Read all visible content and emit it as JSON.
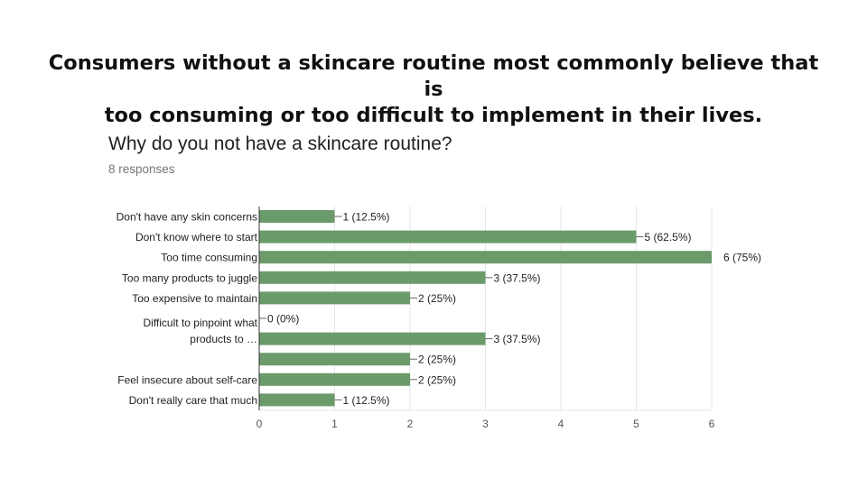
{
  "slide": {
    "title_lines": [
      "Consumers without a skincare routine most commonly believe that is",
      "too consuming or too difficult to implement in their lives."
    ]
  },
  "form": {
    "question": "Why do you not have a skincare routine?",
    "responses": "8 responses"
  },
  "chart_data": {
    "type": "bar",
    "orientation": "horizontal",
    "categories": [
      [
        "Don't have any skin concerns"
      ],
      [
        "Don't know where to start"
      ],
      [
        "Too time consuming"
      ],
      [
        "Too many products to juggle"
      ],
      [
        "Too expensive to maintain"
      ],
      [
        ""
      ],
      [
        "Difficult to pinpoint what",
        "products to …"
      ],
      [
        ""
      ],
      [
        "Feel insecure about self-care"
      ],
      [
        "Don't really care that much"
      ]
    ],
    "values": [
      1,
      5,
      6,
      3,
      2,
      0,
      3,
      2,
      2,
      1
    ],
    "data_labels": [
      "1 (12.5%)",
      "5 (62.5%)",
      "6 (75%)",
      "3 (37.5%)",
      "2 (25%)",
      "0 (0%)",
      "3 (37.5%)",
      "2 (25%)",
      "2 (25%)",
      "1 (12.5%)"
    ],
    "xlim": [
      0,
      6
    ],
    "xticks": [
      "0",
      "1",
      "2",
      "3",
      "4",
      "5",
      "6"
    ],
    "grid": true,
    "colors": {
      "bar": "#6b9a6b",
      "grid": "#e6e6e6",
      "axis": "#333333",
      "text": "#222222",
      "tick": "#555555"
    }
  }
}
